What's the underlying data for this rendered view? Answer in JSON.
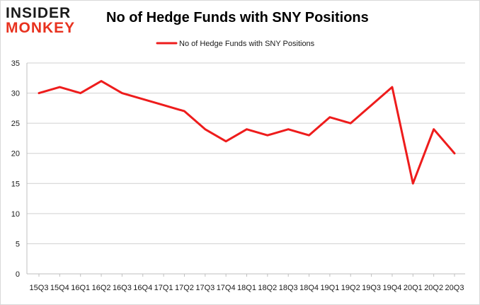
{
  "logo": {
    "line1": "INSIDER",
    "line2": "MONKEY"
  },
  "chart_data": {
    "type": "line",
    "title": "No of Hedge Funds with SNY Positions",
    "xlabel": "",
    "ylabel": "",
    "categories": [
      "15Q3",
      "15Q4",
      "16Q1",
      "16Q2",
      "16Q3",
      "16Q4",
      "17Q1",
      "17Q2",
      "17Q3",
      "17Q4",
      "18Q1",
      "18Q2",
      "18Q3",
      "18Q4",
      "19Q1",
      "19Q2",
      "19Q3",
      "19Q4",
      "20Q1",
      "20Q2",
      "20Q3"
    ],
    "series": [
      {
        "name": "No of Hedge Funds with SNY Positions",
        "values": [
          30,
          31,
          30,
          32,
          30,
          29,
          28,
          27,
          24,
          22,
          24,
          23,
          24,
          23,
          26,
          25,
          28,
          31,
          15,
          24,
          20
        ],
        "color": "#ee1c1c"
      }
    ],
    "ylim": [
      0,
      35
    ],
    "yticks": [
      0,
      5,
      10,
      15,
      20,
      25,
      30,
      35
    ],
    "grid": true,
    "legend": "top-center"
  }
}
